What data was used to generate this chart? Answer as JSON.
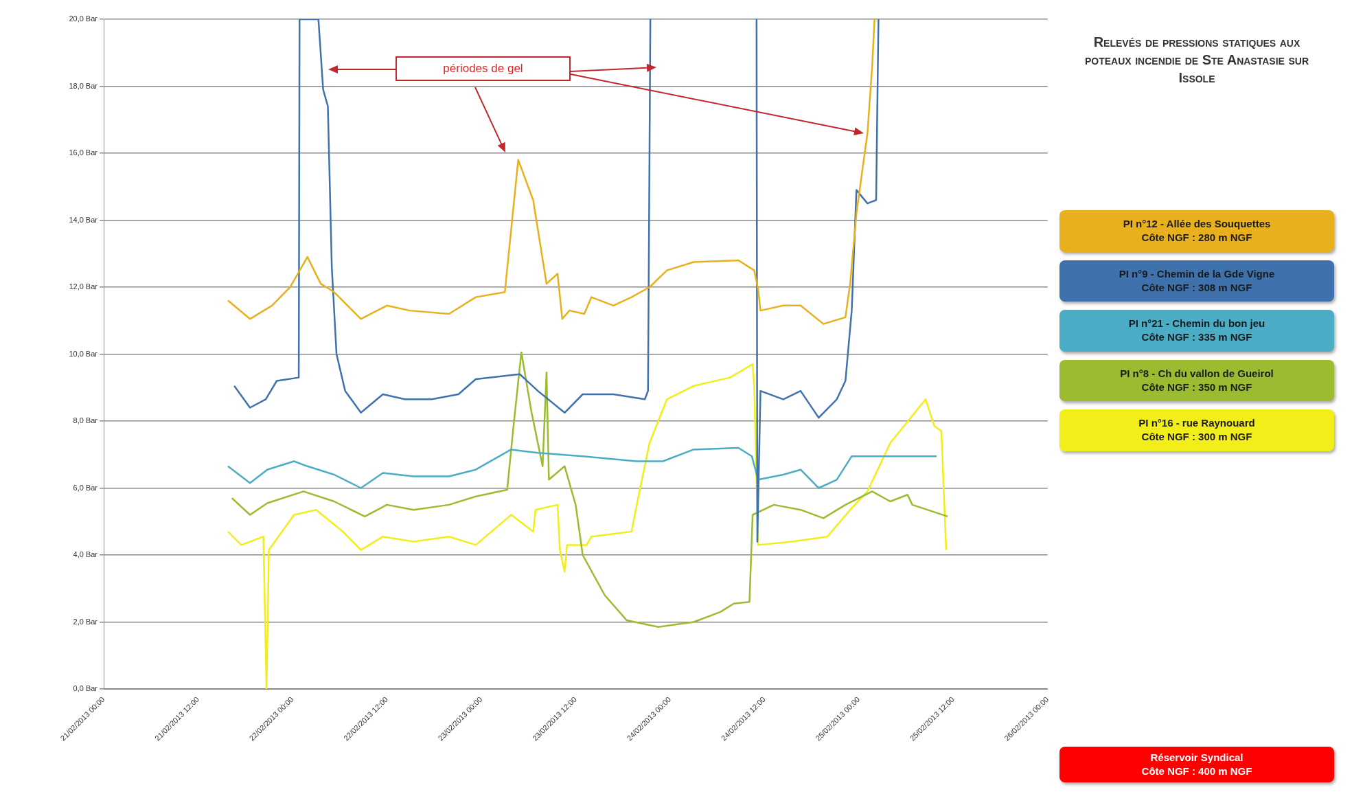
{
  "chart_data": {
    "type": "line",
    "title": "Relevés de pressions statiques aux poteaux incendie de Ste Anastasie sur Issole",
    "annotations": [
      "périodes de gel",
      "Réservoir Syndical\nCôte NGF : 400 m NGF"
    ],
    "xlim": [
      "2013-02-21T00:00",
      "2013-02-26T00:00"
    ],
    "xticks": [
      {
        "value": "2013-02-21T00:00",
        "label": "21/02/2013 00:00"
      },
      {
        "value": "2013-02-21T12:00",
        "label": "21/02/2013 12:00"
      },
      {
        "value": "2013-02-22T00:00",
        "label": "22/02/2013 00:00"
      },
      {
        "value": "2013-02-22T12:00",
        "label": "22/02/2013 12:00"
      },
      {
        "value": "2013-02-23T00:00",
        "label": "23/02/2013 00:00"
      },
      {
        "value": "2013-02-23T12:00",
        "label": "23/02/2013 12:00"
      },
      {
        "value": "2013-02-24T00:00",
        "label": "24/02/2013 00:00"
      },
      {
        "value": "2013-02-24T12:00",
        "label": "24/02/2013 12:00"
      },
      {
        "value": "2013-02-25T00:00",
        "label": "25/02/2013 00:00"
      },
      {
        "value": "2013-02-25T12:00",
        "label": "25/02/2013 12:00"
      },
      {
        "value": "2013-02-26T00:00",
        "label": "26/02/2013 00:00"
      }
    ],
    "ylim": [
      0,
      20
    ],
    "yticks": [
      {
        "value": 0,
        "label": "0,0 Bar"
      },
      {
        "value": 2,
        "label": "2,0 Bar"
      },
      {
        "value": 4,
        "label": "4,0 Bar"
      },
      {
        "value": 6,
        "label": "6,0 Bar"
      },
      {
        "value": 8,
        "label": "8,0 Bar"
      },
      {
        "value": 10,
        "label": "10,0 Bar"
      },
      {
        "value": 12,
        "label": "12,0 Bar"
      },
      {
        "value": 14,
        "label": "14,0 Bar"
      },
      {
        "value": 16,
        "label": "16,0 Bar"
      },
      {
        "value": 18,
        "label": "18,0 Bar"
      },
      {
        "value": 20,
        "label": "20,0 Bar"
      }
    ],
    "grid": "y",
    "legend": "right",
    "marker": "none",
    "line_style": "solid",
    "series": [
      {
        "name": "PI n°12 - Allée des Souquettes\nCôte NGF : 280 m NGF",
        "color": "#e8b01c",
        "x": [
          "2013-02-21T15:48",
          "2013-02-21T18:36",
          "2013-02-21T21:24",
          "2013-02-21T23:42",
          "2013-02-22T01:54",
          "2013-02-22T03:36",
          "2013-02-22T05:18",
          "2013-02-22T08:42",
          "2013-02-22T12:00",
          "2013-02-22T14:54",
          "2013-02-22T19:54",
          "2013-02-22T23:18",
          "2013-02-23T03:00",
          "2013-02-23T04:42",
          "2013-02-23T06:36",
          "2013-02-23T08:18",
          "2013-02-23T09:42",
          "2013-02-23T10:18",
          "2013-02-23T11:12",
          "2013-02-23T13:06",
          "2013-02-23T14:00",
          "2013-02-23T16:48",
          "2013-02-23T19:06",
          "2013-02-23T21:24",
          "2013-02-23T23:36",
          "2013-02-24T03:00",
          "2013-02-24T08:42",
          "2013-02-24T10:42",
          "2013-02-24T11:12",
          "2013-02-24T11:30",
          "2013-02-24T14:24",
          "2013-02-24T16:36",
          "2013-02-24T19:30",
          "2013-02-24T22:18",
          "2013-02-24T22:54",
          "2013-02-24T23:42",
          "2013-02-25T01:06",
          "2013-02-25T01:42",
          "2013-02-25T02:00"
        ],
        "values": [
          11.6,
          11.05,
          11.45,
          12.0,
          12.9,
          12.1,
          11.85,
          11.05,
          11.45,
          11.3,
          11.2,
          11.7,
          11.85,
          15.8,
          14.6,
          12.1,
          12.4,
          11.05,
          11.3,
          11.2,
          11.7,
          11.45,
          11.7,
          12.0,
          12.5,
          12.75,
          12.8,
          12.5,
          11.95,
          11.3,
          11.45,
          11.45,
          10.9,
          11.1,
          12.1,
          14.2,
          16.6,
          18.6,
          20
        ]
      },
      {
        "name": "PI n°9 - Chemin de la Gde Vigne\nCôte NGF : 308 m NGF",
        "color": "#3f72ac",
        "x": [
          "2013-02-21T16:36",
          "2013-02-21T18:36",
          "2013-02-21T20:36",
          "2013-02-21T22:00",
          "2013-02-22T00:48",
          "2013-02-22T00:54",
          "2013-02-22T03:18",
          "2013-02-22T03:54",
          "2013-02-22T04:30",
          "2013-02-22T05:00",
          "2013-02-22T05:36",
          "2013-02-22T06:42",
          "2013-02-22T08:42",
          "2013-02-22T11:30",
          "2013-02-22T14:18",
          "2013-02-22T17:42",
          "2013-02-22T21:06",
          "2013-02-22T23:18",
          "2013-02-23T04:54",
          "2013-02-23T07:12",
          "2013-02-23T10:36",
          "2013-02-23T12:54",
          "2013-02-23T16:48",
          "2013-02-23T20:48",
          "2013-02-23T21:12",
          "2013-02-23T21:30",
          "2013-02-24T04:00",
          "2013-02-24T11:00",
          "2013-02-24T11:06",
          "2013-02-24T11:30",
          "2013-02-24T14:24",
          "2013-02-24T16:36",
          "2013-02-24T18:54",
          "2013-02-24T21:12",
          "2013-02-24T22:18",
          "2013-02-24T23:06",
          "2013-02-24T23:42",
          "2013-02-25T01:06",
          "2013-02-25T02:12",
          "2013-02-25T02:30"
        ],
        "values": [
          9.05,
          8.4,
          8.65,
          9.2,
          9.3,
          20,
          20,
          17.9,
          17.4,
          12.6,
          10.0,
          8.9,
          8.25,
          8.8,
          8.65,
          8.65,
          8.8,
          9.25,
          9.4,
          8.9,
          8.25,
          8.8,
          8.8,
          8.65,
          8.9,
          20,
          null,
          20,
          4.4,
          8.9,
          8.65,
          8.9,
          8.1,
          8.65,
          9.2,
          11.3,
          14.9,
          14.5,
          14.6,
          20
        ]
      },
      {
        "name": "PI n°21 - Chemin du bon jeu\nCôte NGF : 335 m NGF",
        "color": "#4bacc6",
        "x": [
          "2013-02-21T15:48",
          "2013-02-21T18:36",
          "2013-02-21T20:48",
          "2013-02-22T00:12",
          "2013-02-22T01:54",
          "2013-02-22T05:18",
          "2013-02-22T08:42",
          "2013-02-22T11:30",
          "2013-02-22T15:24",
          "2013-02-22T19:54",
          "2013-02-22T23:18",
          "2013-02-23T03:48",
          "2013-02-23T07:12",
          "2013-02-23T12:54",
          "2013-02-23T19:42",
          "2013-02-23T23:06",
          "2013-02-24T03:00",
          "2013-02-24T08:42",
          "2013-02-24T10:24",
          "2013-02-24T11:12",
          "2013-02-24T14:24",
          "2013-02-24T16:36",
          "2013-02-24T18:54",
          "2013-02-24T21:12",
          "2013-02-24T23:06",
          "2013-02-25T09:54"
        ],
        "values": [
          6.65,
          6.15,
          6.55,
          6.8,
          6.65,
          6.4,
          6.0,
          6.45,
          6.35,
          6.35,
          6.55,
          7.15,
          7.05,
          6.95,
          6.8,
          6.8,
          7.15,
          7.2,
          6.95,
          6.25,
          6.4,
          6.55,
          6.0,
          6.25,
          6.95,
          6.95
        ]
      },
      {
        "name": "PI n°8 - Ch du vallon de Gueirol\nCôte NGF : 350 m NGF",
        "color": "#9bbb30",
        "x": [
          "2013-02-21T16:18",
          "2013-02-21T18:36",
          "2013-02-21T20:48",
          "2013-02-22T01:24",
          "2013-02-22T05:18",
          "2013-02-22T09:12",
          "2013-02-22T12:00",
          "2013-02-22T15:24",
          "2013-02-22T19:54",
          "2013-02-22T23:18",
          "2013-02-23T03:18",
          "2013-02-23T04:06",
          "2013-02-23T05:06",
          "2013-02-23T06:24",
          "2013-02-23T07:48",
          "2013-02-23T08:18",
          "2013-02-23T08:36",
          "2013-02-23T10:36",
          "2013-02-23T12:00",
          "2013-02-23T12:54",
          "2013-02-23T15:42",
          "2013-02-23T18:30",
          "2013-02-23T22:30",
          "2013-02-24T03:00",
          "2013-02-24T06:24",
          "2013-02-24T08:06",
          "2013-02-24T10:06",
          "2013-02-24T10:30",
          "2013-02-24T13:12",
          "2013-02-24T16:36",
          "2013-02-24T19:30",
          "2013-02-24T22:18",
          "2013-02-25T01:42",
          "2013-02-25T04:00",
          "2013-02-25T06:12",
          "2013-02-25T06:48",
          "2013-02-25T11:18"
        ],
        "values": [
          5.7,
          5.2,
          5.55,
          5.9,
          5.6,
          5.15,
          5.5,
          5.35,
          5.5,
          5.75,
          5.95,
          7.85,
          10.05,
          8.25,
          6.65,
          9.45,
          6.25,
          6.65,
          5.5,
          4.0,
          2.8,
          2.05,
          1.85,
          2.0,
          2.3,
          2.55,
          2.6,
          5.2,
          5.5,
          5.35,
          5.1,
          5.5,
          5.9,
          5.6,
          5.8,
          5.5,
          5.15
        ]
      },
      {
        "name": "PI n°16 - rue Raynouard\nCôte NGF : 300 m NGF",
        "color": "#f2ee1a",
        "x": [
          "2013-02-21T15:48",
          "2013-02-21T17:30",
          "2013-02-21T20:18",
          "2013-02-21T20:42",
          "2013-02-21T21:00",
          "2013-02-22T00:12",
          "2013-02-22T03:00",
          "2013-02-22T06:24",
          "2013-02-22T08:42",
          "2013-02-22T11:30",
          "2013-02-22T15:24",
          "2013-02-22T19:54",
          "2013-02-22T23:18",
          "2013-02-23T03:48",
          "2013-02-23T06:36",
          "2013-02-23T06:54",
          "2013-02-23T09:42",
          "2013-02-23T10:00",
          "2013-02-23T10:36",
          "2013-02-23T10:54",
          "2013-02-23T13:24",
          "2013-02-23T14:00",
          "2013-02-23T19:06",
          "2013-02-23T20:12",
          "2013-02-23T21:24",
          "2013-02-23T23:36",
          "2013-02-24T03:00",
          "2013-02-24T07:36",
          "2013-02-24T09:48",
          "2013-02-24T10:30",
          "2013-02-24T10:42",
          "2013-02-24T11:12",
          "2013-02-24T15:30",
          "2013-02-24T20:00",
          "2013-02-24T22:54",
          "2013-02-25T01:06",
          "2013-02-25T04:00",
          "2013-02-25T08:30",
          "2013-02-25T09:36",
          "2013-02-25T10:30",
          "2013-02-25T11:06"
        ],
        "values": [
          4.7,
          4.3,
          4.55,
          0,
          4.15,
          5.2,
          5.35,
          4.7,
          4.15,
          4.55,
          4.4,
          4.55,
          4.3,
          5.2,
          4.7,
          5.35,
          5.5,
          4.15,
          3.5,
          4.3,
          4.3,
          4.55,
          4.7,
          6.0,
          7.35,
          8.65,
          9.05,
          9.3,
          9.6,
          9.7,
          9.05,
          4.3,
          4.4,
          4.55,
          5.35,
          5.9,
          7.35,
          8.65,
          7.85,
          7.7,
          4.15
        ]
      }
    ]
  }
}
